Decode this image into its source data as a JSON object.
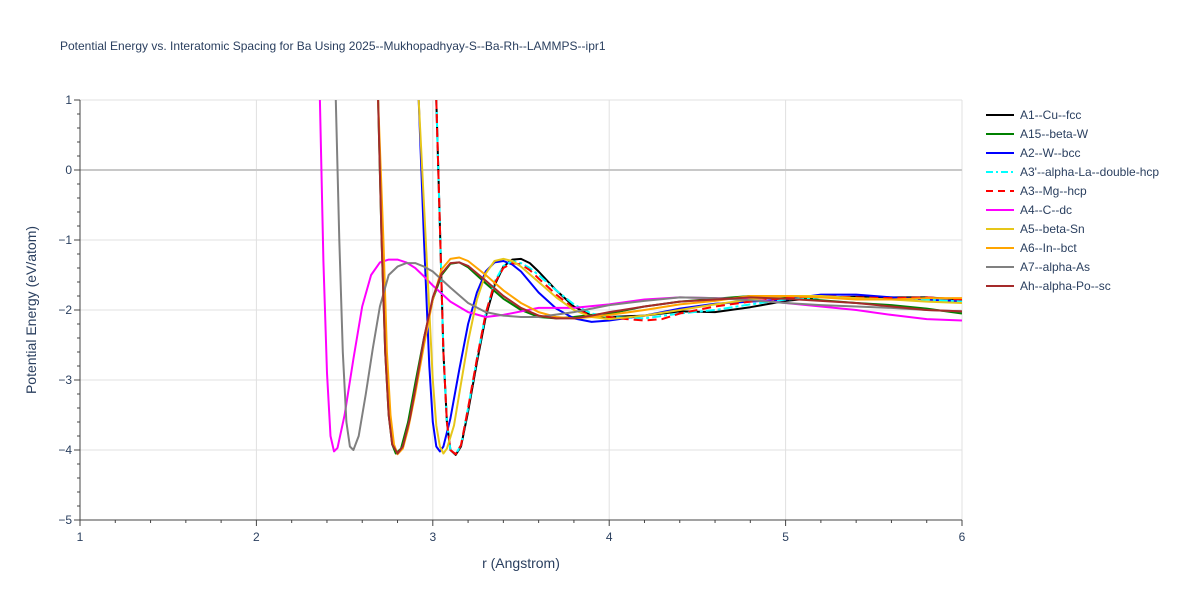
{
  "chart_data": {
    "type": "line",
    "title": "Potential Energy vs. Interatomic Spacing for Ba Using 2025--Mukhopadhyay-S--Ba-Rh--LAMMPS--ipr1",
    "xlabel": "r (Angstrom)",
    "ylabel": "Potential Energy (eV/atom)",
    "xlim": [
      1,
      6
    ],
    "ylim": [
      -5,
      1
    ],
    "xticks": [
      1,
      2,
      3,
      4,
      5,
      6
    ],
    "yticks": [
      -5,
      -4,
      -3,
      -2,
      -1,
      0,
      1
    ],
    "xtick_labels": [
      "1",
      "2",
      "3",
      "4",
      "5",
      "6"
    ],
    "ytick_labels": [
      "−5",
      "−4",
      "−3",
      "−2",
      "−1",
      "0",
      "1"
    ],
    "grid": true,
    "legend_position": "right",
    "series": [
      {
        "name": "A1--Cu--fcc",
        "color": "#000000",
        "dash": "solid",
        "x": [
          3.02,
          3.04,
          3.06,
          3.08,
          3.1,
          3.13,
          3.16,
          3.2,
          3.25,
          3.3,
          3.35,
          3.4,
          3.45,
          3.5,
          3.55,
          3.6,
          3.7,
          3.8,
          3.9,
          4.0,
          4.2,
          4.4,
          4.6,
          4.8,
          5.0,
          5.2,
          5.4,
          5.6,
          5.8,
          6.0
        ],
        "y": [
          1.0,
          -0.8,
          -2.6,
          -3.6,
          -4.0,
          -4.07,
          -3.95,
          -3.45,
          -2.75,
          -2.1,
          -1.65,
          -1.38,
          -1.28,
          -1.27,
          -1.33,
          -1.45,
          -1.72,
          -1.95,
          -2.08,
          -2.1,
          -2.08,
          -2.02,
          -2.03,
          -1.96,
          -1.87,
          -1.82,
          -1.81,
          -1.82,
          -1.82,
          -1.85
        ]
      },
      {
        "name": "A15--beta-W",
        "color": "#008000",
        "dash": "solid",
        "x": [
          2.69,
          2.71,
          2.73,
          2.75,
          2.77,
          2.79,
          2.82,
          2.86,
          2.9,
          2.95,
          3.0,
          3.05,
          3.1,
          3.15,
          3.2,
          3.3,
          3.4,
          3.5,
          3.6,
          3.7,
          3.8,
          3.9,
          4.0,
          4.2,
          4.4,
          4.6,
          4.8,
          5.0,
          5.2,
          5.4,
          5.6,
          5.8,
          6.0
        ],
        "y": [
          1.0,
          -1.0,
          -2.6,
          -3.5,
          -3.92,
          -4.05,
          -3.98,
          -3.6,
          -3.05,
          -2.4,
          -1.85,
          -1.5,
          -1.34,
          -1.32,
          -1.39,
          -1.62,
          -1.84,
          -2.0,
          -2.1,
          -2.12,
          -2.1,
          -2.07,
          -2.05,
          -1.95,
          -1.88,
          -1.84,
          -1.8,
          -1.82,
          -1.86,
          -1.9,
          -1.93,
          -1.98,
          -2.05
        ]
      },
      {
        "name": "A2--W--bcc",
        "color": "#0000ff",
        "dash": "solid",
        "x": [
          2.92,
          2.95,
          2.98,
          3.0,
          3.02,
          3.04,
          3.06,
          3.1,
          3.15,
          3.2,
          3.25,
          3.3,
          3.35,
          3.4,
          3.45,
          3.5,
          3.55,
          3.6,
          3.7,
          3.8,
          3.9,
          4.0,
          4.2,
          4.4,
          4.6,
          4.8,
          5.0,
          5.2,
          5.4,
          5.6,
          5.8,
          6.0
        ],
        "y": [
          1.0,
          -1.0,
          -2.8,
          -3.6,
          -3.95,
          -4.02,
          -3.95,
          -3.55,
          -2.85,
          -2.2,
          -1.75,
          -1.45,
          -1.32,
          -1.3,
          -1.35,
          -1.45,
          -1.6,
          -1.75,
          -1.98,
          -2.12,
          -2.17,
          -2.15,
          -2.08,
          -1.98,
          -1.91,
          -1.88,
          -1.85,
          -1.78,
          -1.78,
          -1.82,
          -1.85,
          -1.88
        ]
      },
      {
        "name": "A3'--alpha-La--double-hcp",
        "color": "#00ffff",
        "dash": "dashdot",
        "x": [
          3.02,
          3.04,
          3.06,
          3.08,
          3.1,
          3.13,
          3.16,
          3.2,
          3.25,
          3.3,
          3.35,
          3.4,
          3.45,
          3.5,
          3.55,
          3.6,
          3.7,
          3.8,
          3.9,
          4.0,
          4.2,
          4.4,
          4.6,
          4.8,
          5.0,
          5.2,
          5.4,
          5.6,
          5.8,
          6.0
        ],
        "y": [
          1.0,
          -0.8,
          -2.6,
          -3.6,
          -4.0,
          -4.06,
          -3.93,
          -3.4,
          -2.7,
          -2.05,
          -1.6,
          -1.37,
          -1.3,
          -1.33,
          -1.4,
          -1.5,
          -1.72,
          -1.92,
          -2.05,
          -2.1,
          -2.12,
          -2.05,
          -2.0,
          -1.92,
          -1.85,
          -1.82,
          -1.83,
          -1.85,
          -1.85,
          -1.88
        ]
      },
      {
        "name": "A3--Mg--hcp",
        "color": "#ff0000",
        "dash": "dash",
        "x": [
          3.02,
          3.04,
          3.06,
          3.08,
          3.1,
          3.13,
          3.16,
          3.2,
          3.25,
          3.3,
          3.35,
          3.4,
          3.45,
          3.5,
          3.55,
          3.6,
          3.7,
          3.8,
          3.9,
          4.0,
          4.1,
          4.2,
          4.3,
          4.4,
          4.6,
          4.8,
          5.0,
          5.2,
          5.4,
          5.6,
          5.8,
          6.0
        ],
        "y": [
          1.0,
          -0.8,
          -2.6,
          -3.6,
          -4.0,
          -4.06,
          -3.93,
          -3.4,
          -2.7,
          -2.05,
          -1.62,
          -1.4,
          -1.33,
          -1.35,
          -1.43,
          -1.55,
          -1.78,
          -1.98,
          -2.08,
          -2.1,
          -2.13,
          -2.15,
          -2.13,
          -2.05,
          -1.95,
          -1.88,
          -1.83,
          -1.8,
          -1.82,
          -1.83,
          -1.82,
          -1.85
        ]
      },
      {
        "name": "A4--C--dc",
        "color": "#ff00ff",
        "dash": "solid",
        "x": [
          2.36,
          2.38,
          2.4,
          2.42,
          2.44,
          2.46,
          2.5,
          2.55,
          2.6,
          2.65,
          2.7,
          2.75,
          2.8,
          2.85,
          2.9,
          2.95,
          3.0,
          3.1,
          3.2,
          3.3,
          3.4,
          3.6,
          3.8,
          4.0,
          4.2,
          4.4,
          4.6,
          4.8,
          5.0,
          5.2,
          5.4,
          5.6,
          5.8,
          6.0
        ],
        "y": [
          1.0,
          -1.3,
          -2.9,
          -3.8,
          -4.02,
          -3.97,
          -3.5,
          -2.7,
          -1.95,
          -1.5,
          -1.32,
          -1.28,
          -1.28,
          -1.32,
          -1.4,
          -1.52,
          -1.65,
          -1.88,
          -2.03,
          -2.1,
          -2.07,
          -1.97,
          -1.97,
          -1.92,
          -1.85,
          -1.82,
          -1.83,
          -1.85,
          -1.9,
          -1.95,
          -2.0,
          -2.07,
          -2.13,
          -2.15
        ]
      },
      {
        "name": "A5--beta-Sn",
        "color": "#e6c619",
        "dash": "solid",
        "x": [
          2.92,
          2.95,
          2.98,
          3.0,
          3.02,
          3.04,
          3.06,
          3.08,
          3.12,
          3.16,
          3.2,
          3.25,
          3.3,
          3.35,
          3.4,
          3.45,
          3.5,
          3.6,
          3.7,
          3.8,
          3.9,
          4.0,
          4.2,
          4.4,
          4.6,
          4.8,
          5.0,
          5.2,
          5.4,
          5.6,
          5.8,
          6.0
        ],
        "y": [
          1.0,
          -0.5,
          -2.0,
          -3.0,
          -3.65,
          -3.95,
          -4.05,
          -3.98,
          -3.65,
          -3.05,
          -2.45,
          -1.85,
          -1.48,
          -1.3,
          -1.27,
          -1.3,
          -1.38,
          -1.6,
          -1.82,
          -2.0,
          -2.1,
          -2.13,
          -2.08,
          -2.0,
          -1.92,
          -1.85,
          -1.8,
          -1.8,
          -1.83,
          -1.85,
          -1.88,
          -1.9
        ]
      },
      {
        "name": "A6--In--bct",
        "color": "#ffa500",
        "dash": "solid",
        "x": [
          2.69,
          2.72,
          2.74,
          2.76,
          2.78,
          2.8,
          2.83,
          2.86,
          2.9,
          2.95,
          3.0,
          3.05,
          3.1,
          3.15,
          3.2,
          3.3,
          3.4,
          3.5,
          3.6,
          3.7,
          3.8,
          3.9,
          4.0,
          4.2,
          4.4,
          4.6,
          4.8,
          5.0,
          5.2,
          5.4,
          5.6,
          5.8,
          6.0
        ],
        "y": [
          1.0,
          -1.0,
          -2.6,
          -3.5,
          -3.92,
          -4.06,
          -3.98,
          -3.7,
          -3.2,
          -2.5,
          -1.85,
          -1.42,
          -1.27,
          -1.25,
          -1.3,
          -1.5,
          -1.72,
          -1.9,
          -2.03,
          -2.1,
          -2.12,
          -2.1,
          -2.07,
          -2.0,
          -1.92,
          -1.87,
          -1.8,
          -1.8,
          -1.82,
          -1.85,
          -1.85,
          -1.83,
          -1.83
        ]
      },
      {
        "name": "A7--alpha-As",
        "color": "#808080",
        "dash": "solid",
        "x": [
          2.45,
          2.47,
          2.49,
          2.51,
          2.53,
          2.55,
          2.58,
          2.62,
          2.66,
          2.7,
          2.75,
          2.8,
          2.85,
          2.9,
          2.95,
          3.0,
          3.1,
          3.2,
          3.3,
          3.4,
          3.5,
          3.6,
          3.8,
          4.0,
          4.2,
          4.4,
          4.6,
          4.8,
          5.0,
          5.2,
          5.4,
          5.6,
          5.8,
          6.0
        ],
        "y": [
          1.0,
          -1.0,
          -2.6,
          -3.6,
          -3.95,
          -4.0,
          -3.8,
          -3.2,
          -2.55,
          -1.95,
          -1.5,
          -1.38,
          -1.33,
          -1.33,
          -1.38,
          -1.45,
          -1.68,
          -1.9,
          -2.03,
          -2.08,
          -2.1,
          -2.1,
          -2.03,
          -1.93,
          -1.87,
          -1.82,
          -1.83,
          -1.86,
          -1.9,
          -1.93,
          -1.95,
          -1.97,
          -2.0,
          -2.02
        ]
      },
      {
        "name": "Ah--alpha-Po--sc",
        "color": "#a52a2a",
        "dash": "solid",
        "x": [
          2.69,
          2.71,
          2.73,
          2.75,
          2.77,
          2.8,
          2.83,
          2.87,
          2.91,
          2.95,
          3.0,
          3.05,
          3.1,
          3.15,
          3.2,
          3.3,
          3.4,
          3.5,
          3.6,
          3.7,
          3.8,
          3.9,
          4.0,
          4.2,
          4.4,
          4.6,
          4.8,
          5.0,
          5.2,
          5.4,
          5.6,
          5.8,
          6.0
        ],
        "y": [
          1.0,
          -1.0,
          -2.6,
          -3.5,
          -3.92,
          -4.05,
          -3.95,
          -3.55,
          -3.0,
          -2.4,
          -1.82,
          -1.48,
          -1.33,
          -1.32,
          -1.37,
          -1.58,
          -1.8,
          -1.97,
          -2.08,
          -2.12,
          -2.12,
          -2.08,
          -2.03,
          -1.95,
          -1.88,
          -1.85,
          -1.82,
          -1.84,
          -1.87,
          -1.9,
          -1.95,
          -2.0,
          -2.02
        ]
      }
    ]
  }
}
